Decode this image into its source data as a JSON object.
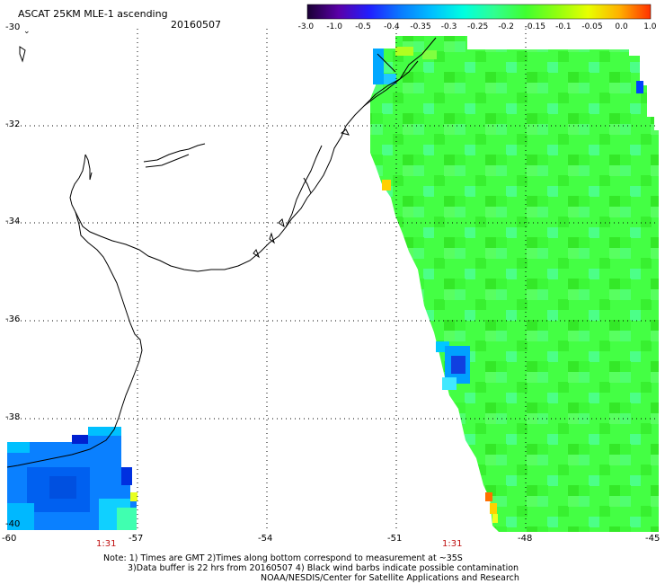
{
  "header": {
    "title": "ASCAT 25KM MLE-1 ascending",
    "date": "20160507"
  },
  "colorbar": {
    "labels": [
      "-3.0",
      "-1.0",
      "-0.5",
      "-0.4",
      "-0.35",
      "-0.3",
      "-0.25",
      "-0.2",
      "-0.15",
      "-0.1",
      "-0.05",
      "0.0",
      "1.0"
    ],
    "colors": [
      "#1a0033",
      "#5a00a8",
      "#2020ff",
      "#0a7bff",
      "#00c0ff",
      "#00ffe0",
      "#30ff90",
      "#40ff30",
      "#90ff10",
      "#e8ff00",
      "#ffb000",
      "#ff3000"
    ]
  },
  "map": {
    "lat_labels": [
      "-30",
      "-32",
      "-34",
      "-36",
      "-38",
      "-40"
    ],
    "lon_labels": [
      "-60",
      "-57",
      "-54",
      "-51",
      "-48",
      "-45"
    ],
    "time_labels": [
      "1:31",
      "1:31"
    ]
  },
  "notes": {
    "line1": "Note: 1) Times are GMT 2)Times along bottom correspond to measurement at ~35S",
    "line2": "3)Data buffer is 22 hrs from 20160507 4) Black wind barbs indicate possible contamination",
    "line3": "NOAA/NESDIS/Center for Satellite Applications and Research"
  }
}
